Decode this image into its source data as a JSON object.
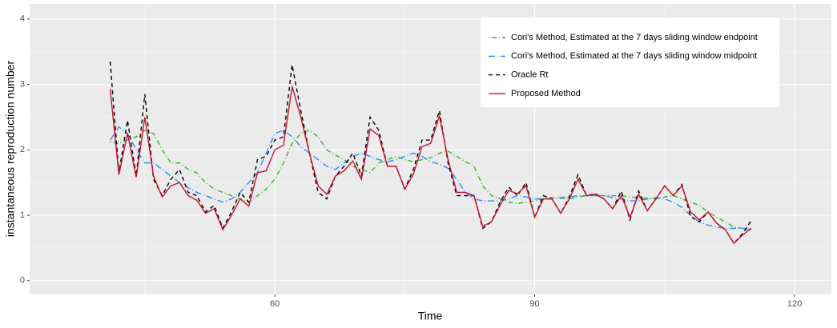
{
  "chart_data": {
    "type": "line",
    "xlabel": "Time",
    "ylabel": "instantaneous reproduction number",
    "x": [
      41,
      42,
      43,
      44,
      45,
      46,
      47,
      48,
      49,
      50,
      51,
      52,
      53,
      54,
      55,
      56,
      57,
      58,
      59,
      60,
      61,
      62,
      63,
      64,
      65,
      66,
      67,
      68,
      69,
      70,
      71,
      72,
      73,
      74,
      75,
      76,
      77,
      78,
      79,
      80,
      81,
      82,
      83,
      84,
      85,
      86,
      87,
      88,
      89,
      90,
      91,
      92,
      93,
      94,
      95,
      96,
      97,
      98,
      99,
      100,
      101,
      102,
      103,
      104,
      105,
      106,
      107,
      108,
      109,
      110,
      111,
      112,
      113,
      114,
      115
    ],
    "series": [
      {
        "name": "Cori's Method, Estimated at the 7 days sliding window endpoint",
        "color": "#3cb521",
        "dash": "dotdash",
        "values": [
          2.12,
          2.1,
          2.15,
          2.2,
          2.3,
          2.25,
          2.0,
          1.8,
          1.8,
          1.7,
          1.65,
          1.5,
          1.4,
          1.35,
          1.3,
          1.25,
          1.2,
          1.3,
          1.4,
          1.55,
          1.8,
          2.1,
          2.25,
          2.3,
          2.2,
          2.0,
          1.92,
          1.85,
          1.75,
          1.7,
          1.65,
          1.8,
          1.85,
          1.9,
          1.85,
          1.82,
          1.85,
          1.88,
          1.95,
          1.98,
          1.9,
          1.82,
          1.75,
          1.45,
          1.3,
          1.25,
          1.2,
          1.18,
          1.2,
          1.22,
          1.25,
          1.27,
          1.26,
          1.25,
          1.28,
          1.3,
          1.3,
          1.3,
          1.3,
          1.3,
          1.28,
          1.27,
          1.26,
          1.25,
          1.28,
          1.3,
          1.25,
          1.2,
          1.15,
          1.05,
          0.97,
          0.9,
          0.82,
          0.8,
          0.78
        ]
      },
      {
        "name": "Cori's Method, Estimated at the 7 days sliding window midpoint",
        "color": "#2b8cff",
        "dash": "longdotdash",
        "values": [
          2.15,
          2.35,
          2.25,
          2.0,
          1.8,
          1.8,
          1.7,
          1.6,
          1.5,
          1.42,
          1.35,
          1.3,
          1.25,
          1.2,
          1.25,
          1.35,
          1.5,
          1.65,
          1.95,
          2.25,
          2.3,
          2.2,
          2.05,
          1.95,
          1.85,
          1.75,
          1.7,
          1.8,
          1.9,
          1.95,
          1.9,
          1.85,
          1.82,
          1.85,
          1.9,
          1.95,
          1.9,
          1.82,
          1.78,
          1.72,
          1.55,
          1.35,
          1.25,
          1.22,
          1.22,
          1.22,
          1.25,
          1.3,
          1.28,
          1.25,
          1.25,
          1.25,
          1.27,
          1.28,
          1.3,
          1.3,
          1.3,
          1.3,
          1.27,
          1.25,
          1.22,
          1.22,
          1.25,
          1.27,
          1.25,
          1.2,
          1.12,
          1.0,
          0.9,
          0.85,
          0.82,
          0.8,
          0.8,
          0.8,
          0.78
        ]
      },
      {
        "name": "Oracle Rt",
        "color": "#000000",
        "dash": "dashed",
        "values": [
          3.35,
          1.65,
          2.45,
          1.6,
          2.85,
          1.55,
          1.3,
          1.55,
          1.7,
          1.35,
          1.3,
          1.05,
          1.15,
          0.8,
          1.05,
          1.35,
          1.2,
          1.85,
          1.9,
          2.15,
          2.2,
          3.3,
          2.6,
          1.95,
          1.35,
          1.25,
          1.6,
          1.75,
          1.95,
          1.6,
          2.5,
          2.3,
          1.75,
          1.75,
          1.4,
          1.7,
          2.15,
          2.15,
          2.6,
          1.8,
          1.3,
          1.3,
          1.3,
          0.8,
          0.9,
          1.2,
          1.43,
          1.3,
          1.5,
          0.97,
          1.3,
          1.25,
          1.03,
          1.28,
          1.62,
          1.3,
          1.33,
          1.25,
          1.1,
          1.37,
          0.93,
          1.37,
          1.07,
          1.25,
          1.45,
          1.3,
          1.47,
          0.98,
          0.9,
          1.05,
          0.88,
          0.78,
          0.57,
          0.72,
          0.92
        ]
      },
      {
        "name": "Proposed Method",
        "color": "#c8102e",
        "dash": "solid",
        "values": [
          2.93,
          1.62,
          2.25,
          1.58,
          2.5,
          1.6,
          1.28,
          1.45,
          1.5,
          1.3,
          1.23,
          1.03,
          1.1,
          0.78,
          1.0,
          1.25,
          1.14,
          1.65,
          1.68,
          2.0,
          2.07,
          2.97,
          2.5,
          1.95,
          1.45,
          1.32,
          1.6,
          1.68,
          1.83,
          1.55,
          2.32,
          2.22,
          1.75,
          1.75,
          1.4,
          1.63,
          2.05,
          2.1,
          2.52,
          1.85,
          1.35,
          1.35,
          1.3,
          0.83,
          0.9,
          1.15,
          1.38,
          1.33,
          1.45,
          0.97,
          1.25,
          1.25,
          1.03,
          1.25,
          1.55,
          1.3,
          1.32,
          1.25,
          1.1,
          1.3,
          0.97,
          1.32,
          1.07,
          1.25,
          1.45,
          1.3,
          1.45,
          1.05,
          0.93,
          1.05,
          0.88,
          0.78,
          0.57,
          0.7,
          0.8
        ]
      }
    ],
    "xlim": [
      31.7,
      124.25
    ],
    "ylim": [
      -0.21,
      4.23
    ],
    "xticks": [
      60,
      90,
      120
    ],
    "yticks": [
      0,
      1,
      2,
      3,
      4
    ],
    "x_minor_ticks": [
      45,
      75,
      105
    ],
    "y_minor_ticks": [
      0.5,
      1.5,
      2.5,
      3.5
    ],
    "grid": true,
    "legend_position": "top-right"
  }
}
